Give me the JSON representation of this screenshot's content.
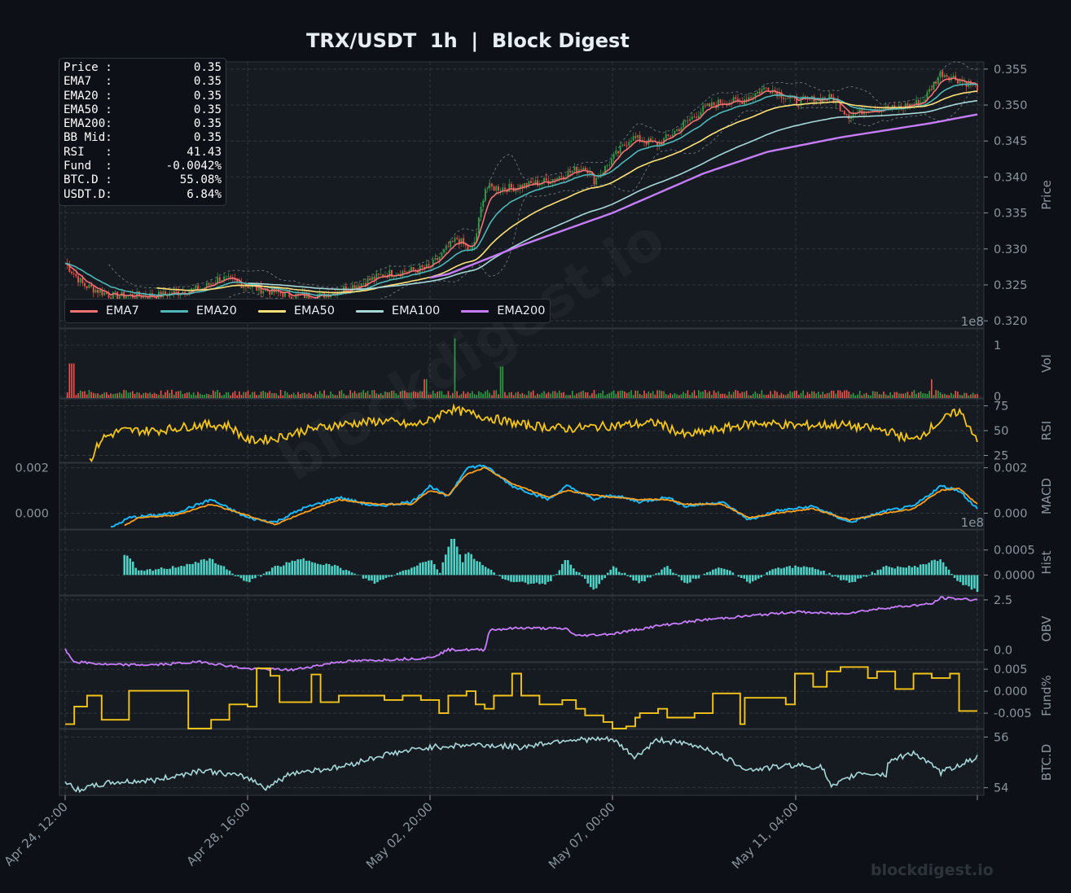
{
  "title": "TRX/USDT  1h  |  Block Digest",
  "watermark": "blockdigest.io",
  "info_box": [
    {
      "label": "Price :",
      "value": "0.35"
    },
    {
      "label": "EMA7  :",
      "value": "0.35"
    },
    {
      "label": "EMA20 :",
      "value": "0.35"
    },
    {
      "label": "EMA50 :",
      "value": "0.35"
    },
    {
      "label": "EMA200:",
      "value": "0.35"
    },
    {
      "label": "BB Mid:",
      "value": "0.35"
    },
    {
      "label": "RSI   :",
      "value": "41.43"
    },
    {
      "label": "Fund  :",
      "value": "-0.0042%"
    },
    {
      "label": "BTC.D :",
      "value": "55.08%"
    },
    {
      "label": "USDT.D:",
      "value": "6.84%"
    }
  ],
  "colors": {
    "background": "#0d1117",
    "panel": "#161b22",
    "grid": "#30363d",
    "up": "#2ea043",
    "down": "#f85149",
    "ema7": "#f47174",
    "ema20": "#4fb8b8",
    "ema50": "#ffe177",
    "ema100": "#a8d8d8",
    "ema200": "#c77dff",
    "rsi": "#f5c518",
    "macd": "#1ab8ff",
    "signal": "#ff9f1c",
    "hist": "#4fd1c5",
    "obv": "#c77dff",
    "fund": "#f5c518",
    "btcd": "#a8d8d8"
  },
  "chart_data": {
    "type": "line",
    "x_ticks": [
      "Apr 24, 12:00",
      "Apr 28, 16:00",
      "May 02, 20:00",
      "May 07, 00:00",
      "May 11, 04:00"
    ],
    "legend": [
      "EMA7",
      "EMA20",
      "EMA50",
      "EMA100",
      "EMA200"
    ],
    "panels": [
      {
        "id": "price",
        "ylabel": "Price",
        "ylim": [
          0.319,
          0.356
        ],
        "ticks": [
          "0.320",
          "0.325",
          "0.330",
          "0.335",
          "0.340",
          "0.345",
          "0.350",
          "0.355"
        ],
        "series_knots": {
          "close": [
            [
              0,
              0.328
            ],
            [
              0.02,
              0.325
            ],
            [
              0.05,
              0.3235
            ],
            [
              0.1,
              0.3235
            ],
            [
              0.15,
              0.3245
            ],
            [
              0.17,
              0.326
            ],
            [
              0.21,
              0.3245
            ],
            [
              0.25,
              0.3235
            ],
            [
              0.28,
              0.3235
            ],
            [
              0.32,
              0.325
            ],
            [
              0.35,
              0.3265
            ],
            [
              0.38,
              0.327
            ],
            [
              0.4,
              0.3275
            ],
            [
              0.43,
              0.3315
            ],
            [
              0.445,
              0.3295
            ],
            [
              0.45,
              0.3315
            ],
            [
              0.46,
              0.3385
            ],
            [
              0.49,
              0.3385
            ],
            [
              0.53,
              0.3395
            ],
            [
              0.55,
              0.3405
            ],
            [
              0.57,
              0.3415
            ],
            [
              0.58,
              0.3395
            ],
            [
              0.6,
              0.3425
            ],
            [
              0.62,
              0.3455
            ],
            [
              0.65,
              0.3445
            ],
            [
              0.67,
              0.3465
            ],
            [
              0.7,
              0.3495
            ],
            [
              0.72,
              0.3505
            ],
            [
              0.74,
              0.3505
            ],
            [
              0.77,
              0.3525
            ],
            [
              0.8,
              0.3505
            ],
            [
              0.84,
              0.351
            ],
            [
              0.86,
              0.3485
            ],
            [
              0.88,
              0.3495
            ],
            [
              0.91,
              0.3495
            ],
            [
              0.94,
              0.3505
            ],
            [
              0.96,
              0.3545
            ],
            [
              0.98,
              0.3535
            ],
            [
              1.0,
              0.3525
            ]
          ],
          "ema200": [
            [
              0.4,
              0.326
            ],
            [
              0.42,
              0.3265
            ],
            [
              0.5,
              0.3305
            ],
            [
              0.6,
              0.335
            ],
            [
              0.7,
              0.3405
            ],
            [
              0.77,
              0.3435
            ],
            [
              0.85,
              0.3455
            ],
            [
              0.9,
              0.3465
            ],
            [
              0.95,
              0.3475
            ],
            [
              1.0,
              0.3487
            ]
          ]
        }
      },
      {
        "id": "vol",
        "ylabel": "Vol",
        "ticks": [
          "0",
          "1"
        ],
        "scale_label": "1e8"
      },
      {
        "id": "rsi",
        "ylabel": "RSI",
        "ylim": [
          18,
          82
        ],
        "ticks": [
          "25",
          "50",
          "75"
        ],
        "knots": [
          [
            0.027,
            20
          ],
          [
            0.04,
            42
          ],
          [
            0.06,
            50
          ],
          [
            0.1,
            50
          ],
          [
            0.15,
            56
          ],
          [
            0.18,
            55
          ],
          [
            0.2,
            40
          ],
          [
            0.23,
            42
          ],
          [
            0.26,
            50
          ],
          [
            0.3,
            56
          ],
          [
            0.35,
            60
          ],
          [
            0.38,
            55
          ],
          [
            0.4,
            60
          ],
          [
            0.42,
            72
          ],
          [
            0.44,
            68
          ],
          [
            0.46,
            64
          ],
          [
            0.5,
            56
          ],
          [
            0.55,
            52
          ],
          [
            0.6,
            55
          ],
          [
            0.65,
            58
          ],
          [
            0.68,
            45
          ],
          [
            0.72,
            52
          ],
          [
            0.76,
            58
          ],
          [
            0.8,
            55
          ],
          [
            0.85,
            56
          ],
          [
            0.9,
            50
          ],
          [
            0.93,
            40
          ],
          [
            0.96,
            60
          ],
          [
            0.98,
            70
          ],
          [
            1.0,
            42
          ]
        ]
      },
      {
        "id": "macd",
        "ylabel": "MACD",
        "ylim": [
          -0.0007,
          0.0022
        ],
        "ticks": [
          "0.000",
          "0.002"
        ],
        "macd_knots": [
          [
            0.05,
            -0.00065
          ],
          [
            0.07,
            -0.0002
          ],
          [
            0.12,
            0.0
          ],
          [
            0.16,
            0.0006
          ],
          [
            0.2,
            -0.0002
          ],
          [
            0.23,
            -0.0004
          ],
          [
            0.26,
            0.0002
          ],
          [
            0.3,
            0.0007
          ],
          [
            0.34,
            0.0003
          ],
          [
            0.38,
            0.0005
          ],
          [
            0.4,
            0.0012
          ],
          [
            0.42,
            0.0007
          ],
          [
            0.44,
            0.002
          ],
          [
            0.46,
            0.0021
          ],
          [
            0.49,
            0.0012
          ],
          [
            0.53,
            0.0006
          ],
          [
            0.55,
            0.0012
          ],
          [
            0.58,
            0.0006
          ],
          [
            0.6,
            0.0008
          ],
          [
            0.63,
            0.0005
          ],
          [
            0.66,
            0.0007
          ],
          [
            0.68,
            0.0003
          ],
          [
            0.72,
            0.0005
          ],
          [
            0.75,
            -0.0003
          ],
          [
            0.78,
            0.0001
          ],
          [
            0.82,
            0.0003
          ],
          [
            0.86,
            -0.0004
          ],
          [
            0.9,
            0.0001
          ],
          [
            0.93,
            0.0003
          ],
          [
            0.96,
            0.0012
          ],
          [
            0.98,
            0.001
          ],
          [
            1.0,
            0.0002
          ]
        ],
        "signal_knots": [
          [
            0.065,
            -0.00055
          ],
          [
            0.08,
            -0.0002
          ],
          [
            0.12,
            -0.0001
          ],
          [
            0.16,
            0.0004
          ],
          [
            0.2,
            -0.0001
          ],
          [
            0.23,
            -0.0005
          ],
          [
            0.26,
            0.0
          ],
          [
            0.3,
            0.0006
          ],
          [
            0.34,
            0.0004
          ],
          [
            0.38,
            0.0004
          ],
          [
            0.4,
            0.001
          ],
          [
            0.42,
            0.0008
          ],
          [
            0.44,
            0.0017
          ],
          [
            0.46,
            0.002
          ],
          [
            0.49,
            0.0013
          ],
          [
            0.53,
            0.0007
          ],
          [
            0.55,
            0.001
          ],
          [
            0.58,
            0.0008
          ],
          [
            0.6,
            0.0007
          ],
          [
            0.63,
            0.0006
          ],
          [
            0.66,
            0.0006
          ],
          [
            0.68,
            0.0004
          ],
          [
            0.72,
            0.0004
          ],
          [
            0.75,
            -0.0002
          ],
          [
            0.78,
            0.0
          ],
          [
            0.82,
            0.0002
          ],
          [
            0.86,
            -0.0003
          ],
          [
            0.9,
            0.0
          ],
          [
            0.93,
            0.0002
          ],
          [
            0.96,
            0.001
          ],
          [
            0.98,
            0.0011
          ],
          [
            1.0,
            0.0004
          ]
        ]
      },
      {
        "id": "hist",
        "ylabel": "Hist",
        "ylim": [
          -0.0004,
          0.0009
        ],
        "ticks": [
          "0.0000",
          "0.0005"
        ],
        "scale_label": "1e8"
      },
      {
        "id": "obv",
        "ylabel": "OBV",
        "ylim": [
          -0.6,
          2.7
        ],
        "ticks": [
          "0.0",
          "2.5"
        ],
        "knots": [
          [
            0,
            0.0
          ],
          [
            0.01,
            -0.6
          ],
          [
            0.05,
            -0.75
          ],
          [
            0.1,
            -0.75
          ],
          [
            0.15,
            -0.6
          ],
          [
            0.2,
            -0.95
          ],
          [
            0.25,
            -1.0
          ],
          [
            0.3,
            -0.6
          ],
          [
            0.35,
            -0.5
          ],
          [
            0.4,
            -0.4
          ],
          [
            0.42,
            0.0
          ],
          [
            0.46,
            0.0
          ],
          [
            0.465,
            1.0
          ],
          [
            0.5,
            1.1
          ],
          [
            0.55,
            1.05
          ],
          [
            0.56,
            0.7
          ],
          [
            0.6,
            0.8
          ],
          [
            0.65,
            1.2
          ],
          [
            0.7,
            1.5
          ],
          [
            0.75,
            1.7
          ],
          [
            0.8,
            1.9
          ],
          [
            0.85,
            1.8
          ],
          [
            0.9,
            2.1
          ],
          [
            0.95,
            2.3
          ],
          [
            0.96,
            2.6
          ],
          [
            1.0,
            2.5
          ]
        ]
      },
      {
        "id": "fund",
        "ylabel": "Fund%",
        "ylim": [
          -0.0085,
          0.0065
        ],
        "ticks": [
          "-0.005",
          "0.000",
          "0.005"
        ],
        "steps": [
          [
            0,
            -0.0075
          ],
          [
            0.01,
            -0.0035
          ],
          [
            0.024,
            -0.001
          ],
          [
            0.04,
            -0.0065
          ],
          [
            0.07,
            0.0001
          ],
          [
            0.135,
            -0.0085
          ],
          [
            0.16,
            -0.0065
          ],
          [
            0.18,
            -0.003
          ],
          [
            0.2,
            -0.0035
          ],
          [
            0.21,
            0.0052
          ],
          [
            0.225,
            0.0035
          ],
          [
            0.235,
            -0.0025
          ],
          [
            0.25,
            -0.0025
          ],
          [
            0.27,
            0.0038
          ],
          [
            0.28,
            -0.0025
          ],
          [
            0.3,
            -0.001
          ],
          [
            0.35,
            -0.002
          ],
          [
            0.37,
            -0.001
          ],
          [
            0.39,
            -0.002
          ],
          [
            0.41,
            -0.005
          ],
          [
            0.42,
            -0.001
          ],
          [
            0.44,
            0.0
          ],
          [
            0.45,
            -0.003
          ],
          [
            0.46,
            -0.004
          ],
          [
            0.47,
            -0.001
          ],
          [
            0.49,
            0.004
          ],
          [
            0.5,
            -0.001
          ],
          [
            0.52,
            -0.003
          ],
          [
            0.545,
            -0.002
          ],
          [
            0.56,
            -0.004
          ],
          [
            0.57,
            -0.0055
          ],
          [
            0.59,
            -0.007
          ],
          [
            0.6,
            -0.0085
          ],
          [
            0.615,
            -0.008
          ],
          [
            0.625,
            -0.006
          ],
          [
            0.63,
            -0.005
          ],
          [
            0.65,
            -0.004
          ],
          [
            0.66,
            -0.006
          ],
          [
            0.69,
            -0.005
          ],
          [
            0.71,
            -0.0005
          ],
          [
            0.74,
            -0.0075
          ],
          [
            0.745,
            -0.0015
          ],
          [
            0.78,
            -0.0015
          ],
          [
            0.79,
            -0.003
          ],
          [
            0.8,
            0.004
          ],
          [
            0.82,
            0.001
          ],
          [
            0.835,
            0.0045
          ],
          [
            0.85,
            0.0055
          ],
          [
            0.87,
            0.0055
          ],
          [
            0.88,
            0.003
          ],
          [
            0.89,
            0.0045
          ],
          [
            0.91,
            0.0005
          ],
          [
            0.93,
            0.004
          ],
          [
            0.95,
            0.003
          ],
          [
            0.97,
            0.004
          ],
          [
            0.98,
            -0.0045
          ],
          [
            1.0,
            -0.0045
          ]
        ]
      },
      {
        "id": "btcd",
        "ylabel": "BTC.D",
        "ylim": [
          53.7,
          56.3
        ],
        "ticks": [
          "54",
          "56"
        ],
        "knots": [
          [
            0,
            54.3
          ],
          [
            0.01,
            53.9
          ],
          [
            0.05,
            54.2
          ],
          [
            0.1,
            54.3
          ],
          [
            0.15,
            54.7
          ],
          [
            0.2,
            54.4
          ],
          [
            0.22,
            54.0
          ],
          [
            0.25,
            54.6
          ],
          [
            0.3,
            54.8
          ],
          [
            0.35,
            55.3
          ],
          [
            0.4,
            55.6
          ],
          [
            0.45,
            55.7
          ],
          [
            0.5,
            55.6
          ],
          [
            0.55,
            55.9
          ],
          [
            0.6,
            55.9
          ],
          [
            0.625,
            55.2
          ],
          [
            0.65,
            55.9
          ],
          [
            0.7,
            55.6
          ],
          [
            0.75,
            54.7
          ],
          [
            0.8,
            54.9
          ],
          [
            0.83,
            54.8
          ],
          [
            0.84,
            54.0
          ],
          [
            0.87,
            54.6
          ],
          [
            0.9,
            54.5
          ],
          [
            0.9,
            55.0
          ],
          [
            0.93,
            55.4
          ],
          [
            0.96,
            54.6
          ],
          [
            0.98,
            54.9
          ],
          [
            1.0,
            55.2
          ]
        ]
      }
    ]
  }
}
